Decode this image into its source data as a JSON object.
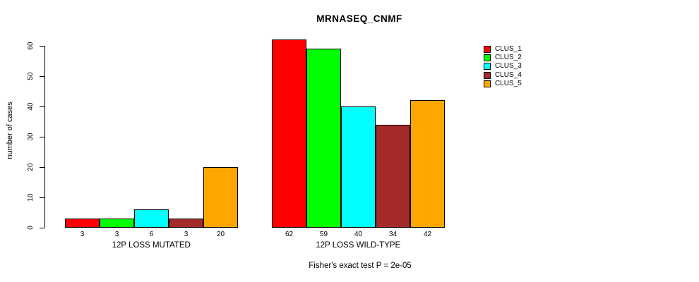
{
  "chart_data": {
    "type": "bar",
    "title": "MRNASEQ_CNMF",
    "ylabel": "number of cases",
    "xlabel": "",
    "ylim": [
      0,
      60
    ],
    "yticks": [
      0,
      10,
      20,
      30,
      40,
      50,
      60
    ],
    "grid": false,
    "legend_position": "right",
    "categories": [
      "12P LOSS MUTATED",
      "12P LOSS WILD-TYPE"
    ],
    "series": [
      {
        "name": "CLUS_1",
        "color": "#FF0000",
        "values": [
          3,
          62
        ]
      },
      {
        "name": "CLUS_2",
        "color": "#00FF00",
        "values": [
          3,
          59
        ]
      },
      {
        "name": "CLUS_3",
        "color": "#00FFFF",
        "values": [
          6,
          40
        ]
      },
      {
        "name": "CLUS_4",
        "color": "#A52A2A",
        "values": [
          3,
          34
        ]
      },
      {
        "name": "CLUS_5",
        "color": "#FFA500",
        "values": [
          20,
          42
        ]
      }
    ],
    "bar_value_labels": [
      [
        "3",
        "3",
        "6",
        "3",
        "20"
      ],
      [
        "62",
        "59",
        "40",
        "34",
        "42"
      ]
    ],
    "annotation": "Fisher's exact test P = 2e-05",
    "background": "#FFFFFF",
    "bar_border_color": "#000000"
  }
}
